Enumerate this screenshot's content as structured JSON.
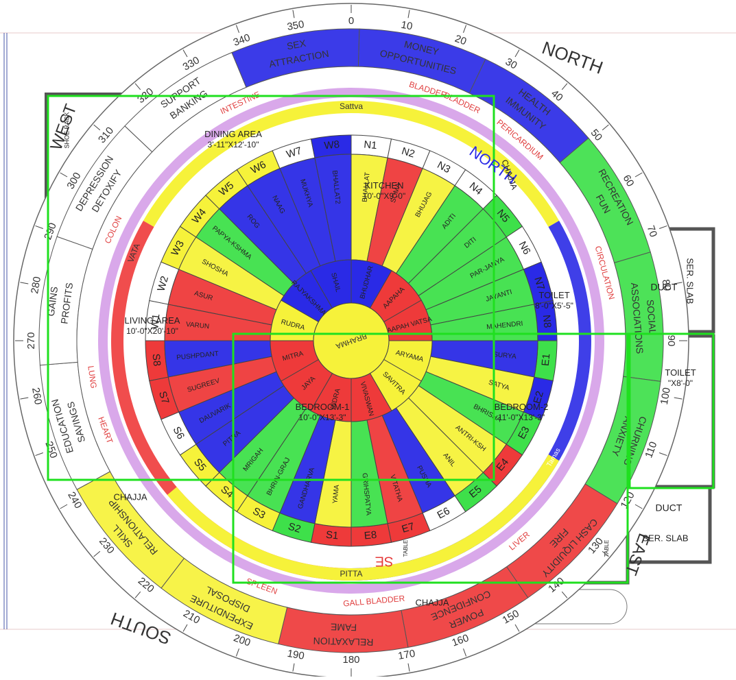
{
  "colors": {
    "blue": "#2a2ae6",
    "red": "#ee3a3a",
    "yellow": "#f6f23a",
    "green": "#3ee04a",
    "lavender": "#d9a8ea",
    "white": "#ffffff",
    "green_outline": "#1fe01f",
    "wall": "#555555"
  },
  "directions": {
    "north": "NORTH",
    "south": "SOUTH",
    "east": "EAST",
    "west": "WEST",
    "north_inner": "NORTH",
    "se_mark": "SE"
  },
  "degrees": [
    "0",
    "10",
    "20",
    "30",
    "40",
    "50",
    "60",
    "70",
    "80",
    "90",
    "100",
    "110",
    "120",
    "130",
    "140",
    "150",
    "160",
    "170",
    "180",
    "190",
    "200",
    "210",
    "220",
    "230",
    "240",
    "250",
    "260",
    "270",
    "280",
    "290",
    "300",
    "310",
    "320",
    "330",
    "340",
    "350"
  ],
  "outer_ring": [
    {
      "lines": [
        "SEX",
        "ATTRACTION"
      ],
      "color": "blue"
    },
    {
      "lines": [
        "MONEY",
        "OPPORTUNITIES"
      ],
      "color": "blue"
    },
    {
      "lines": [
        "HEALTH",
        "IMMUNITY"
      ],
      "color": "blue"
    },
    {
      "lines": [
        "RECREATION",
        "FUN"
      ],
      "color": "green"
    },
    {
      "lines": [
        "SOCIAL",
        "ASSOCIATIONS"
      ],
      "color": "green"
    },
    {
      "lines": [
        "CHURNING",
        "ANXIETY"
      ],
      "color": "green"
    },
    {
      "lines": [
        "CASH LIQUIDITY",
        "FIRE"
      ],
      "color": "red"
    },
    {
      "lines": [
        "POWER",
        "CONFIDENCE"
      ],
      "color": "red"
    },
    {
      "lines": [
        "RELAXATION",
        "FAME"
      ],
      "color": "red"
    },
    {
      "lines": [
        "EXPENDITURE",
        "DISPOSAL"
      ],
      "color": "yellow"
    },
    {
      "lines": [
        "SKILL",
        "RELATIONSHIP"
      ],
      "color": "yellow"
    },
    {
      "lines": [
        "EDUCATION",
        "SAVINGS"
      ],
      "color": "white"
    },
    {
      "lines": [
        "GAINS",
        "PROFITS"
      ],
      "color": "white"
    },
    {
      "lines": [
        "DEPRESSION",
        "DETOXIFY"
      ],
      "color": "white"
    },
    {
      "lines": [
        "SUPPORT",
        "BANKING"
      ],
      "color": "white"
    }
  ],
  "organs": [
    "BLADDER",
    "BLADDER",
    "PERICARDIUM",
    "CIRCULATION",
    "LIVER",
    "GALL BLADDER",
    "SPLEEN",
    "HEART",
    "LUNG",
    "COLON",
    "INTESTINE"
  ],
  "gunas": {
    "top": "Sattva",
    "right": "Tamas",
    "bottom": "PITTA",
    "left": "VATA"
  },
  "padas": [
    {
      "name": "N1",
      "color": "white"
    },
    {
      "name": "N2",
      "color": "white"
    },
    {
      "name": "N3",
      "color": "white"
    },
    {
      "name": "N4",
      "color": "white"
    },
    {
      "name": "N5",
      "color": "green"
    },
    {
      "name": "N6",
      "color": "white"
    },
    {
      "name": "N7",
      "color": "blue"
    },
    {
      "name": "N8",
      "color": "blue"
    },
    {
      "name": "E1",
      "color": "green"
    },
    {
      "name": "E2",
      "color": "blue"
    },
    {
      "name": "E3",
      "color": "green"
    },
    {
      "name": "E4",
      "color": "red"
    },
    {
      "name": "E5",
      "color": "green"
    },
    {
      "name": "E6",
      "color": "white"
    },
    {
      "name": "E7",
      "color": "red"
    },
    {
      "name": "E8",
      "color": "red"
    },
    {
      "name": "S1",
      "color": "red"
    },
    {
      "name": "S2",
      "color": "green"
    },
    {
      "name": "S3",
      "color": "yellow"
    },
    {
      "name": "S4",
      "color": "yellow"
    },
    {
      "name": "S5",
      "color": "yellow"
    },
    {
      "name": "S6",
      "color": "white"
    },
    {
      "name": "S7",
      "color": "red"
    },
    {
      "name": "S8",
      "color": "red"
    },
    {
      "name": "W1",
      "color": "white"
    },
    {
      "name": "W2",
      "color": "white"
    },
    {
      "name": "W3",
      "color": "yellow"
    },
    {
      "name": "W4",
      "color": "yellow"
    },
    {
      "name": "W5",
      "color": "yellow"
    },
    {
      "name": "W6",
      "color": "yellow"
    },
    {
      "name": "W7",
      "color": "white"
    },
    {
      "name": "W8",
      "color": "blue"
    }
  ],
  "devtas": [
    {
      "name": "BHALLAT",
      "color": "yellow"
    },
    {
      "name": "SOMA",
      "color": "red"
    },
    {
      "name": "BHUJAG",
      "color": "yellow"
    },
    {
      "name": "ADITI",
      "color": "green"
    },
    {
      "name": "DITI",
      "color": "green"
    },
    {
      "name": "PAR-JANYA",
      "color": "green"
    },
    {
      "name": "JAYANTI",
      "color": "green"
    },
    {
      "name": "MAHENDRI",
      "color": "green"
    },
    {
      "name": "SURYA",
      "color": "blue"
    },
    {
      "name": "SATYA",
      "color": "yellow"
    },
    {
      "name": "BHRISHA",
      "color": "green"
    },
    {
      "name": "ANTRI-KSH",
      "color": "yellow"
    },
    {
      "name": "ANIL",
      "color": "yellow"
    },
    {
      "name": "PUSHA",
      "color": "blue"
    },
    {
      "name": "VITATHA",
      "color": "red"
    },
    {
      "name": "GRIHSPATYA",
      "color": "green"
    },
    {
      "name": "YAMA",
      "color": "yellow"
    },
    {
      "name": "GANDHARVA",
      "color": "blue"
    },
    {
      "name": "BHRIN-GRAJ",
      "color": "green"
    },
    {
      "name": "MRIGAH",
      "color": "green"
    },
    {
      "name": "PITRA",
      "color": "blue"
    },
    {
      "name": "DAUVARIK",
      "color": "blue"
    },
    {
      "name": "SUGREEV",
      "color": "red"
    },
    {
      "name": "PUSHPDANT",
      "color": "blue"
    },
    {
      "name": "VARUN",
      "color": "red"
    },
    {
      "name": "ASUR",
      "color": "red"
    },
    {
      "name": "SHOSHA",
      "color": "yellow"
    },
    {
      "name": "PAPYA-KSHMA",
      "color": "green"
    },
    {
      "name": "ROG",
      "color": "blue"
    },
    {
      "name": "NAAG",
      "color": "blue"
    },
    {
      "name": "MUKHYA",
      "color": "blue"
    },
    {
      "name": "BHALLAT2",
      "color": "blue"
    }
  ],
  "inner_ring": [
    {
      "name": "BHUDHAR",
      "color": "blue"
    },
    {
      "name": "AAPAHA",
      "color": "red"
    },
    {
      "name": "AAPAH VATSA",
      "color": "red"
    },
    {
      "name": "ARYAMA",
      "color": "yellow"
    },
    {
      "name": "SAVITRA",
      "color": "yellow"
    },
    {
      "name": "VIVASWAN",
      "color": "red"
    },
    {
      "name": "INDRA",
      "color": "red"
    },
    {
      "name": "JAYA",
      "color": "red"
    },
    {
      "name": "MITRA",
      "color": "red"
    },
    {
      "name": "RUDRA",
      "color": "yellow"
    },
    {
      "name": "RAJYAKSHMA",
      "color": "blue"
    },
    {
      "name": "SHAIL",
      "color": "blue"
    }
  ],
  "center": "BRAHMA",
  "rooms": [
    {
      "name": "DINING AREA",
      "size": "3'-11\"X12'-10\""
    },
    {
      "name": "KITCHEN",
      "size": "10'-0\"X9'-0\""
    },
    {
      "name": "TOILET",
      "size": "8'-0\"X5'-5\""
    },
    {
      "name": "LIVING AREA",
      "size": "10'-0\"X20'-10\""
    },
    {
      "name": "BEDROOM-1",
      "size": "10'-0\"X13'-3\""
    },
    {
      "name": "BEDROOM-2",
      "size": "11'-0\"X13'-3\""
    },
    {
      "name": "TOILET",
      "size": "\"X8'-0\""
    }
  ],
  "plan_labels": {
    "duct1": "DUCT",
    "duct2": "DUCT",
    "ser_slab1": "SER. SLAB",
    "ser_slab2": "SER. SLAB",
    "chajja_left": "CHAJJA",
    "chajja_bottom": "CHAJJA",
    "chajja_top": "CHAJJA",
    "shoe_rack": "SHOE RACK",
    "table1": "TABLE",
    "table2": "TABLE",
    "table3": "TABLE"
  }
}
